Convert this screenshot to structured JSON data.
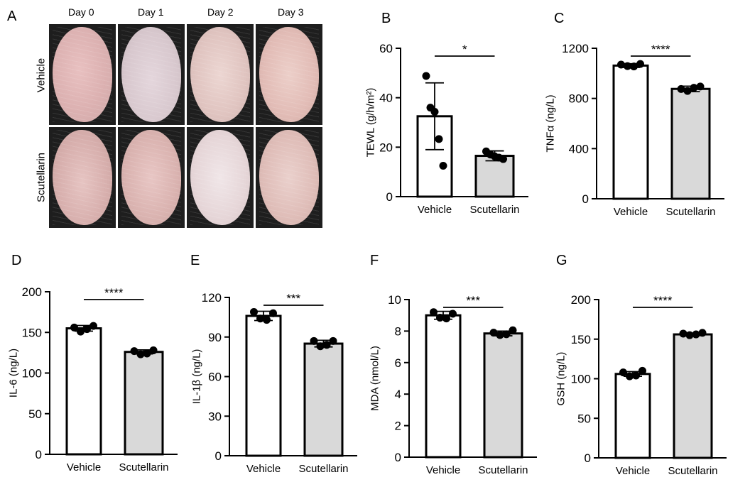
{
  "panel_a": {
    "label": "A",
    "day_labels": [
      "Day 0",
      "Day 1",
      "Day 2",
      "Day 3"
    ],
    "row_labels": [
      "Vehicle",
      "Scutellarin"
    ]
  },
  "chart_data": [
    {
      "panel": "B",
      "type": "bar",
      "title": "",
      "categories": [
        "Vehicle",
        "Scutellarin"
      ],
      "ylabel": "TEWL (g/h/m²)",
      "ylim": [
        0,
        60
      ],
      "yticks": [
        0,
        20,
        40,
        60
      ],
      "means": [
        32.5,
        16.5
      ],
      "sd": [
        13.5,
        2.0
      ],
      "points": [
        [
          48.8,
          36.0,
          34.3,
          23.3,
          12.5
        ],
        [
          18.3,
          17.0,
          16.3,
          15.8,
          15.2
        ]
      ],
      "significance": "*",
      "bar_colors": [
        "#ffffff",
        "#d9d9d9"
      ]
    },
    {
      "panel": "C",
      "type": "bar",
      "title": "",
      "categories": [
        "Vehicle",
        "Scutellarin"
      ],
      "ylabel": "TNFα (ng/L)",
      "ylim": [
        0,
        1200
      ],
      "yticks": [
        0,
        400,
        800,
        1200
      ],
      "means": [
        1062,
        876
      ],
      "sd": [
        15,
        22
      ],
      "points": [
        [
          1070,
          1058,
          1055,
          1075
        ],
        [
          875,
          860,
          885,
          895
        ]
      ],
      "significance": "****",
      "bar_colors": [
        "#ffffff",
        "#d9d9d9"
      ]
    },
    {
      "panel": "D",
      "type": "bar",
      "title": "",
      "categories": [
        "Vehicle",
        "Scutellarin"
      ],
      "ylabel": "IL-6 (ng/L)",
      "ylim": [
        0,
        200
      ],
      "yticks": [
        0,
        50,
        100,
        150,
        200
      ],
      "means": [
        155,
        126
      ],
      "sd": [
        3.5,
        2.5
      ],
      "points": [
        [
          156,
          151,
          154,
          158
        ],
        [
          127,
          123,
          124,
          128
        ]
      ],
      "significance": "****",
      "bar_colors": [
        "#ffffff",
        "#d9d9d9"
      ]
    },
    {
      "panel": "E",
      "type": "bar",
      "title": "",
      "categories": [
        "Vehicle",
        "Scutellarin"
      ],
      "ylabel": "IL-1β (ng/L)",
      "ylim": [
        0,
        120
      ],
      "yticks": [
        0,
        30,
        60,
        90,
        120
      ],
      "means": [
        106,
        85
      ],
      "sd": [
        3.5,
        2.5
      ],
      "points": [
        [
          109,
          104,
          103,
          108
        ],
        [
          87,
          83,
          84,
          87
        ]
      ],
      "significance": "***",
      "bar_colors": [
        "#ffffff",
        "#d9d9d9"
      ]
    },
    {
      "panel": "F",
      "type": "bar",
      "title": "",
      "categories": [
        "Vehicle",
        "Scutellarin"
      ],
      "ylabel": "MDA (nmol/L)",
      "ylim": [
        0,
        10
      ],
      "yticks": [
        0,
        2,
        4,
        6,
        8,
        10
      ],
      "means": [
        9.0,
        7.85
      ],
      "sd": [
        0.25,
        0.15
      ],
      "points": [
        [
          9.2,
          8.85,
          8.8,
          9.1
        ],
        [
          7.9,
          7.75,
          7.8,
          8.05
        ]
      ],
      "significance": "***",
      "bar_colors": [
        "#ffffff",
        "#d9d9d9"
      ]
    },
    {
      "panel": "G",
      "type": "bar",
      "title": "",
      "categories": [
        "Vehicle",
        "Scutellarin"
      ],
      "ylabel": "GSH (ng/L)",
      "ylim": [
        0,
        200
      ],
      "yticks": [
        0,
        50,
        100,
        150,
        200
      ],
      "means": [
        106,
        156
      ],
      "sd": [
        3.0,
        1.5
      ],
      "points": [
        [
          108,
          103,
          104,
          110
        ],
        [
          157,
          155,
          156,
          158
        ]
      ],
      "significance": "****",
      "bar_colors": [
        "#ffffff",
        "#d9d9d9"
      ]
    }
  ]
}
